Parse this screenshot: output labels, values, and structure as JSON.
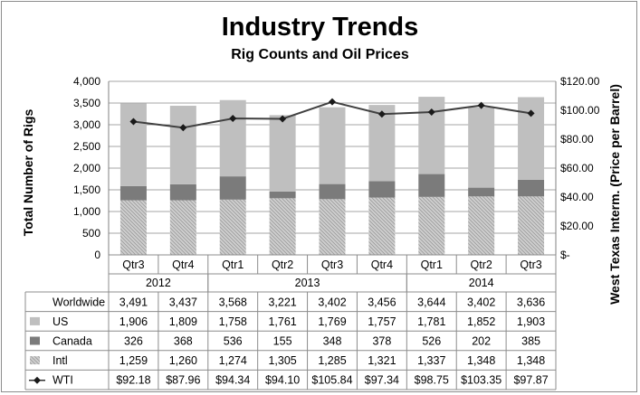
{
  "chart_data": {
    "type": "bar",
    "stacked": true,
    "title": "Industry Trends",
    "subtitle": "Rig Counts and Oil Prices",
    "ylabel": "Total Number of Rigs",
    "y2label": "West Texas Interm. (Price per Barrel)",
    "ylim": [
      0,
      4000
    ],
    "y2lim": [
      0,
      120
    ],
    "yticks": [
      "4,000",
      "3,500",
      "3,000",
      "2,500",
      "2,000",
      "1,500",
      "1,000",
      "500",
      "0"
    ],
    "y2ticks": [
      "$120.00",
      "$100.00",
      "$80.00",
      "$60.00",
      "$40.00",
      "$20.00",
      "$-"
    ],
    "grid": true,
    "categories": [
      "Qtr3",
      "Qtr4",
      "Qtr1",
      "Qtr2",
      "Qtr3",
      "Qtr4",
      "Qtr1",
      "Qtr2",
      "Qtr3"
    ],
    "years": [
      {
        "label": "2012",
        "span": 2
      },
      {
        "label": "2013",
        "span": 4
      },
      {
        "label": "2014",
        "span": 3
      }
    ],
    "table_rows": [
      {
        "label": "Worldwide",
        "key": "worldwide",
        "values": [
          "3,491",
          "3,437",
          "3,568",
          "3,221",
          "3,402",
          "3,456",
          "3,644",
          "3,402",
          "3,636"
        ]
      },
      {
        "label": "US",
        "key": "us",
        "values": [
          "1,906",
          "1,809",
          "1,758",
          "1,761",
          "1,769",
          "1,757",
          "1,781",
          "1,852",
          "1,903"
        ]
      },
      {
        "label": "Canada",
        "key": "canada",
        "values": [
          "326",
          "368",
          "536",
          "155",
          "348",
          "378",
          "526",
          "202",
          "385"
        ]
      },
      {
        "label": "Intl",
        "key": "intl",
        "values": [
          "1,259",
          "1,260",
          "1,274",
          "1,305",
          "1,285",
          "1,321",
          "1,337",
          "1,348",
          "1,348"
        ]
      },
      {
        "label": "WTI",
        "key": "wti",
        "values": [
          "$92.18",
          "$87.96",
          "$94.34",
          "$94.10",
          "$105.84",
          "$97.34",
          "$98.75",
          "$103.35",
          "$97.87"
        ]
      }
    ],
    "series": [
      {
        "name": "Intl",
        "key": "intl",
        "color": "#bdbdbd",
        "pattern": true,
        "values": [
          1259,
          1260,
          1274,
          1305,
          1285,
          1321,
          1337,
          1348,
          1348
        ]
      },
      {
        "name": "Canada",
        "key": "canada",
        "color": "#7b7b7b",
        "values": [
          326,
          368,
          536,
          155,
          348,
          378,
          526,
          202,
          385
        ]
      },
      {
        "name": "US",
        "key": "us",
        "color": "#bfbfbf",
        "values": [
          1906,
          1809,
          1758,
          1761,
          1769,
          1757,
          1781,
          1852,
          1903
        ]
      }
    ],
    "line": {
      "name": "WTI",
      "axis": "right",
      "color": "#404040",
      "values": [
        92.18,
        87.96,
        94.34,
        94.1,
        105.84,
        97.34,
        98.75,
        103.35,
        97.87
      ]
    }
  }
}
